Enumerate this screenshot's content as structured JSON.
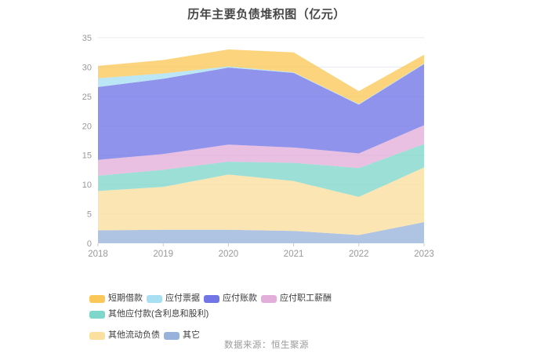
{
  "title": "历年主要负债堆积图（亿元）",
  "footer": "数据来源：恒生聚源",
  "chart_data": {
    "type": "area",
    "stacked": true,
    "title": "历年主要负债堆积图（亿元）",
    "x": [
      "2018",
      "2019",
      "2020",
      "2021",
      "2022",
      "2023"
    ],
    "xlabel": "",
    "ylabel": "",
    "ylim": [
      0,
      35
    ],
    "y_ticks": [
      0,
      5,
      10,
      15,
      20,
      25,
      30,
      35
    ],
    "grid": true,
    "legend_position": "bottom",
    "gridline_color": "#e4e9f2",
    "axis_label_color": "#999999",
    "area_opacity": 0.78,
    "series": [
      {
        "name": "短期借款",
        "color": "#FAC858",
        "values": [
          2.1,
          2.3,
          2.9,
          3.4,
          2.2,
          1.5
        ]
      },
      {
        "name": "应付票据",
        "color": "#A8DFF2",
        "values": [
          1.5,
          0.9,
          0.2,
          0.1,
          0.1,
          0.1
        ]
      },
      {
        "name": "应付账款",
        "color": "#7175E6",
        "values": [
          12.4,
          12.8,
          13.1,
          12.7,
          8.3,
          10.4
        ]
      },
      {
        "name": "应付职工薪酬",
        "color": "#E3AED9",
        "values": [
          2.7,
          2.7,
          2.9,
          2.6,
          2.5,
          3.2
        ]
      },
      {
        "name": "其他应付款(含利息和股利)",
        "color": "#7FD6CB",
        "values": [
          2.6,
          2.9,
          2.2,
          3.1,
          4.9,
          4.0
        ]
      },
      {
        "name": "其他流动负债",
        "color": "#FADF9E",
        "values": [
          6.7,
          7.3,
          9.4,
          8.5,
          6.5,
          9.3
        ]
      },
      {
        "name": "其它",
        "color": "#98B3DB",
        "values": [
          2.2,
          2.3,
          2.3,
          2.1,
          1.4,
          3.6
        ]
      }
    ],
    "stack_note": "series listed top-of-stack first (legend order); bottom band is 其它"
  }
}
